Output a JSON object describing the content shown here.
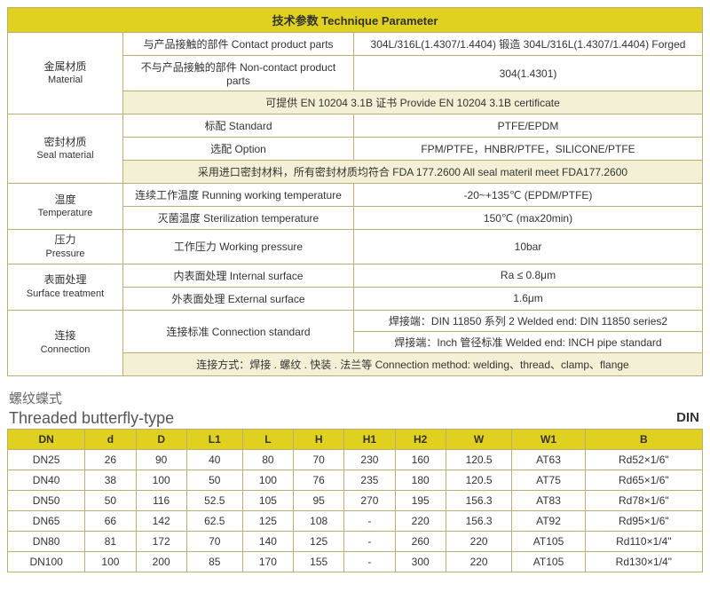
{
  "param_table": {
    "title": "技术参数  Technique Parameter",
    "title_bg": "#e0d020",
    "note_bg": "#f4f0d6",
    "border_color": "#bcae76",
    "rows": [
      {
        "group": {
          "cn": "金属材质",
          "en": "Material"
        },
        "label": "与产品接触的部件  Contact product parts",
        "value": "304L/316L(1.4307/1.4404) 锻造  304L/316L(1.4307/1.4404) Forged"
      },
      {
        "label": "不与产品接触的部件  Non-contact product parts",
        "value": "304(1.4301)"
      },
      {
        "note": "可提供 EN 10204 3.1B 证书    Provide EN 10204 3.1B certificate"
      },
      {
        "group": {
          "cn": "密封材质",
          "en": "Seal material"
        },
        "label": "标配  Standard",
        "value": "PTFE/EPDM"
      },
      {
        "label": "选配  Option",
        "value": "FPM/PTFE，HNBR/PTFE，SILICONE/PTFE"
      },
      {
        "note": "采用进口密封材料，所有密封材质均符合 FDA 177.2600    All seal materil meet FDA177.2600"
      },
      {
        "group": {
          "cn": "温度",
          "en": "Temperature"
        },
        "label": "连续工作温度  Running working temperature",
        "value": "-20~+135℃ (EPDM/PTFE)"
      },
      {
        "label": "灭菌温度  Sterilization temperature",
        "value": "150℃ (max20min)"
      },
      {
        "group": {
          "cn": "压力",
          "en": "Pressure"
        },
        "single": true,
        "label": "工作压力  Working pressure",
        "value": "10bar"
      },
      {
        "group": {
          "cn": "表面处理",
          "en": "Surface treatment"
        },
        "label": "内表面处理  Internal surface",
        "value": "Ra ≤ 0.8μm"
      },
      {
        "label": "外表面处理  External surface",
        "value": "1.6μm"
      },
      {
        "group": {
          "cn": "连接",
          "en": "Connection"
        },
        "label": "连接标准  Connection standard",
        "value_split": [
          "焊接端：DIN 11850 系列 2  Welded end: DIN 11850 series2",
          "焊接端：Inch 管径标准  Welded end: INCH pipe standard"
        ]
      },
      {
        "note": "连接方式：焊接 . 螺纹 . 快装 . 法兰等    Connection method: welding、thread、clamp、flange"
      }
    ]
  },
  "dim_table": {
    "subtitle_cn": "螺纹蝶式",
    "subtitle_en": "Threaded butterfly-type",
    "std_label": "DIN",
    "header_bg": "#e0d020",
    "columns": [
      "DN",
      "d",
      "D",
      "L1",
      "L",
      "H",
      "H1",
      "H2",
      "W",
      "W1",
      "B"
    ],
    "rows": [
      [
        "DN25",
        "26",
        "90",
        "40",
        "80",
        "70",
        "230",
        "160",
        "120.5",
        "AT63",
        "Rd52×1/6\""
      ],
      [
        "DN40",
        "38",
        "100",
        "50",
        "100",
        "76",
        "235",
        "180",
        "120.5",
        "AT75",
        "Rd65×1/6\""
      ],
      [
        "DN50",
        "50",
        "116",
        "52.5",
        "105",
        "95",
        "270",
        "195",
        "156.3",
        "AT83",
        "Rd78×1/6\""
      ],
      [
        "DN65",
        "66",
        "142",
        "62.5",
        "125",
        "108",
        "-",
        "220",
        "156.3",
        "AT92",
        "Rd95×1/6\""
      ],
      [
        "DN80",
        "81",
        "172",
        "70",
        "140",
        "125",
        "-",
        "260",
        "220",
        "AT105",
        "Rd110×1/4\""
      ],
      [
        "DN100",
        "100",
        "200",
        "85",
        "170",
        "155",
        "-",
        "300",
        "220",
        "AT105",
        "Rd130×1/4\""
      ]
    ]
  }
}
